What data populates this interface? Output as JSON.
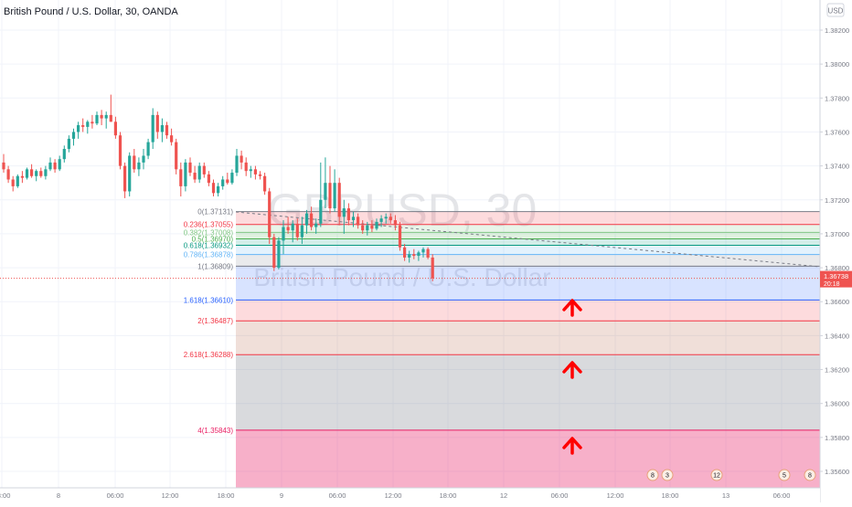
{
  "header": {
    "title": "British Pound / U.S. Dollar, 30, OANDA",
    "currency_badge": "USD"
  },
  "watermark": {
    "symbol": "GBPUSD, 30",
    "name": "British Pound / U.S. Dollar"
  },
  "price_scale": {
    "ticks": [
      "1.38200",
      "1.38000",
      "1.37800",
      "1.37600",
      "1.37400",
      "1.37200",
      "1.37000",
      "1.36800",
      "1.36600",
      "1.36400",
      "1.36200",
      "1.36000",
      "1.35800",
      "1.35600"
    ],
    "last_price": "1.36738",
    "countdown": "20:18"
  },
  "time_scale": {
    "labels": [
      "18:00",
      "8",
      "06:00",
      "12:00",
      "18:00",
      "9",
      "06:00",
      "12:00",
      "18:00",
      "12",
      "06:00",
      "12:00",
      "18:00",
      "13",
      "06:00"
    ]
  },
  "fibonacci": {
    "levels": [
      {
        "label": "0(1.37131)",
        "price": 1.37131,
        "color": "#787b86"
      },
      {
        "label": "0.236(1.37055)",
        "price": 1.37055,
        "color": "#f23645"
      },
      {
        "label": "0.382(1.37008)",
        "price": 1.37008,
        "color": "#81c784"
      },
      {
        "label": "0.5(1.36970)",
        "price": 1.3697,
        "color": "#4caf50"
      },
      {
        "label": "0.618(1.36932)",
        "price": 1.36932,
        "color": "#089981"
      },
      {
        "label": "0.786(1.36878)",
        "price": 1.36878,
        "color": "#64b5f6"
      },
      {
        "label": "1(1.36809)",
        "price": 1.36809,
        "color": "#787b86"
      },
      {
        "label": "1.618(1.36610)",
        "price": 1.3661,
        "color": "#2962ff"
      },
      {
        "label": "2(1.36487)",
        "price": 1.36487,
        "color": "#f23645"
      },
      {
        "label": "2.618(1.36288)",
        "price": 1.36288,
        "color": "#f23645"
      },
      {
        "label": "4(1.35843)",
        "price": 1.35843,
        "color": "#e91e63"
      }
    ]
  },
  "event_badges": [
    "8",
    "3",
    "12",
    "5",
    "8"
  ],
  "colors": {
    "up": "#26a69a",
    "down": "#ef5350",
    "arrow": "#ff0000",
    "last_price_bg": "#ef5350"
  },
  "chart_data": {
    "type": "candlestick",
    "symbol": "GBPUSD",
    "timeframe": "30",
    "x_tick_labels": [
      "18:00",
      "8",
      "06:00",
      "12:00",
      "18:00",
      "9",
      "06:00",
      "12:00",
      "18:00",
      "12",
      "06:00",
      "12:00",
      "18:00",
      "13",
      "06:00"
    ],
    "y_tick_labels": [
      "1.38200",
      "1.38000",
      "1.37800",
      "1.37600",
      "1.37400",
      "1.37200",
      "1.37000",
      "1.36800",
      "1.36600",
      "1.36400",
      "1.36200",
      "1.36000",
      "1.35800",
      "1.35600"
    ],
    "ylim": [
      1.3552,
      1.3828
    ],
    "last_value": 1.36738,
    "grid": true,
    "ohlc": [
      [
        1.3742,
        1.3747,
        1.3736,
        1.3738
      ],
      [
        1.3738,
        1.374,
        1.373,
        1.3732
      ],
      [
        1.3732,
        1.3734,
        1.3725,
        1.3728
      ],
      [
        1.3728,
        1.3735,
        1.3727,
        1.3734
      ],
      [
        1.3734,
        1.3737,
        1.373,
        1.3733
      ],
      [
        1.3733,
        1.3739,
        1.3732,
        1.3738
      ],
      [
        1.3738,
        1.3741,
        1.3733,
        1.3734
      ],
      [
        1.3734,
        1.3738,
        1.3731,
        1.3737
      ],
      [
        1.3737,
        1.3739,
        1.3733,
        1.3734
      ],
      [
        1.3734,
        1.374,
        1.3732,
        1.3738
      ],
      [
        1.3738,
        1.3745,
        1.3737,
        1.3742
      ],
      [
        1.3742,
        1.3744,
        1.3736,
        1.3738
      ],
      [
        1.3738,
        1.3746,
        1.3737,
        1.3744
      ],
      [
        1.3744,
        1.3752,
        1.3742,
        1.375
      ],
      [
        1.375,
        1.3758,
        1.3748,
        1.3756
      ],
      [
        1.3756,
        1.3762,
        1.3752,
        1.376
      ],
      [
        1.376,
        1.3766,
        1.3756,
        1.3764
      ],
      [
        1.3764,
        1.3768,
        1.376,
        1.3763
      ],
      [
        1.3763,
        1.3767,
        1.3759,
        1.3766
      ],
      [
        1.3766,
        1.377,
        1.3762,
        1.3765
      ],
      [
        1.3765,
        1.3772,
        1.3764,
        1.377
      ],
      [
        1.377,
        1.3773,
        1.3764,
        1.3768
      ],
      [
        1.3768,
        1.3772,
        1.3762,
        1.377
      ],
      [
        1.377,
        1.3782,
        1.3766,
        1.3766
      ],
      [
        1.3766,
        1.3769,
        1.3756,
        1.3758
      ],
      [
        1.3758,
        1.376,
        1.3738,
        1.374
      ],
      [
        1.374,
        1.3742,
        1.3721,
        1.3725
      ],
      [
        1.3725,
        1.3748,
        1.3722,
        1.3746
      ],
      [
        1.3746,
        1.375,
        1.3736,
        1.3738
      ],
      [
        1.3738,
        1.3745,
        1.3734,
        1.3742
      ],
      [
        1.3742,
        1.375,
        1.3738,
        1.3746
      ],
      [
        1.3746,
        1.3756,
        1.3744,
        1.3754
      ],
      [
        1.3754,
        1.3774,
        1.375,
        1.377
      ],
      [
        1.377,
        1.3772,
        1.3756,
        1.376
      ],
      [
        1.376,
        1.3768,
        1.3754,
        1.3764
      ],
      [
        1.3764,
        1.3766,
        1.3756,
        1.3758
      ],
      [
        1.3758,
        1.3762,
        1.3752,
        1.3754
      ],
      [
        1.3754,
        1.3756,
        1.3735,
        1.3738
      ],
      [
        1.3738,
        1.3742,
        1.3722,
        1.3728
      ],
      [
        1.3728,
        1.3744,
        1.3725,
        1.3742
      ],
      [
        1.3742,
        1.3745,
        1.3734,
        1.3736
      ],
      [
        1.3736,
        1.374,
        1.373,
        1.3732
      ],
      [
        1.3732,
        1.3742,
        1.373,
        1.374
      ],
      [
        1.374,
        1.3742,
        1.3733,
        1.3735
      ],
      [
        1.3735,
        1.3737,
        1.3728,
        1.373
      ],
      [
        1.373,
        1.3732,
        1.3722,
        1.3724
      ],
      [
        1.3724,
        1.373,
        1.3722,
        1.3728
      ],
      [
        1.3728,
        1.3734,
        1.3726,
        1.3732
      ],
      [
        1.3732,
        1.3736,
        1.3729,
        1.373
      ],
      [
        1.373,
        1.3738,
        1.3729,
        1.3736
      ],
      [
        1.3736,
        1.375,
        1.3734,
        1.3746
      ],
      [
        1.3746,
        1.3749,
        1.3738,
        1.3742
      ],
      [
        1.3742,
        1.3745,
        1.3734,
        1.3737
      ],
      [
        1.3737,
        1.374,
        1.3733,
        1.3738
      ],
      [
        1.3738,
        1.374,
        1.3732,
        1.3735
      ],
      [
        1.3735,
        1.3737,
        1.3732,
        1.3734
      ],
      [
        1.3734,
        1.3736,
        1.3723,
        1.3725
      ],
      [
        1.3725,
        1.3727,
        1.3694,
        1.3698
      ],
      [
        1.3698,
        1.37,
        1.3678,
        1.368
      ],
      [
        1.368,
        1.3698,
        1.3679,
        1.3696
      ],
      [
        1.3696,
        1.3708,
        1.3688,
        1.3704
      ],
      [
        1.3704,
        1.371,
        1.37,
        1.3702
      ],
      [
        1.3702,
        1.3708,
        1.3695,
        1.3706
      ],
      [
        1.3706,
        1.3709,
        1.3696,
        1.3698
      ],
      [
        1.3698,
        1.371,
        1.3694,
        1.3705
      ],
      [
        1.3705,
        1.3714,
        1.37,
        1.3712
      ],
      [
        1.3712,
        1.3716,
        1.3702,
        1.3704
      ],
      [
        1.3704,
        1.3709,
        1.37,
        1.3706
      ],
      [
        1.3706,
        1.3742,
        1.3704,
        1.372
      ],
      [
        1.372,
        1.3745,
        1.3715,
        1.373
      ],
      [
        1.373,
        1.374,
        1.3712,
        1.3715
      ],
      [
        1.3715,
        1.3738,
        1.3713,
        1.373
      ],
      [
        1.373,
        1.3733,
        1.3705,
        1.371
      ],
      [
        1.371,
        1.372,
        1.37,
        1.3715
      ],
      [
        1.3715,
        1.3718,
        1.3705,
        1.3708
      ],
      [
        1.3708,
        1.3713,
        1.3704,
        1.371
      ],
      [
        1.371,
        1.3712,
        1.3703,
        1.3705
      ],
      [
        1.3705,
        1.3708,
        1.37,
        1.3702
      ],
      [
        1.3702,
        1.3707,
        1.3699,
        1.3705
      ],
      [
        1.3705,
        1.3708,
        1.3701,
        1.3703
      ],
      [
        1.3703,
        1.3709,
        1.3702,
        1.3707
      ],
      [
        1.3707,
        1.3711,
        1.3704,
        1.3709
      ],
      [
        1.3709,
        1.3712,
        1.3706,
        1.371
      ],
      [
        1.371,
        1.3712,
        1.3706,
        1.3708
      ],
      [
        1.3708,
        1.3711,
        1.3702,
        1.3705
      ],
      [
        1.3705,
        1.3707,
        1.369,
        1.3692
      ],
      [
        1.3692,
        1.3694,
        1.3684,
        1.3686
      ],
      [
        1.3686,
        1.369,
        1.3683,
        1.3688
      ],
      [
        1.3688,
        1.3691,
        1.3685,
        1.3687
      ],
      [
        1.3687,
        1.369,
        1.3684,
        1.3689
      ],
      [
        1.3689,
        1.3692,
        1.3686,
        1.3691
      ],
      [
        1.3691,
        1.3692,
        1.3685,
        1.3686
      ],
      [
        1.3686,
        1.3688,
        1.3672,
        1.36738
      ]
    ]
  }
}
